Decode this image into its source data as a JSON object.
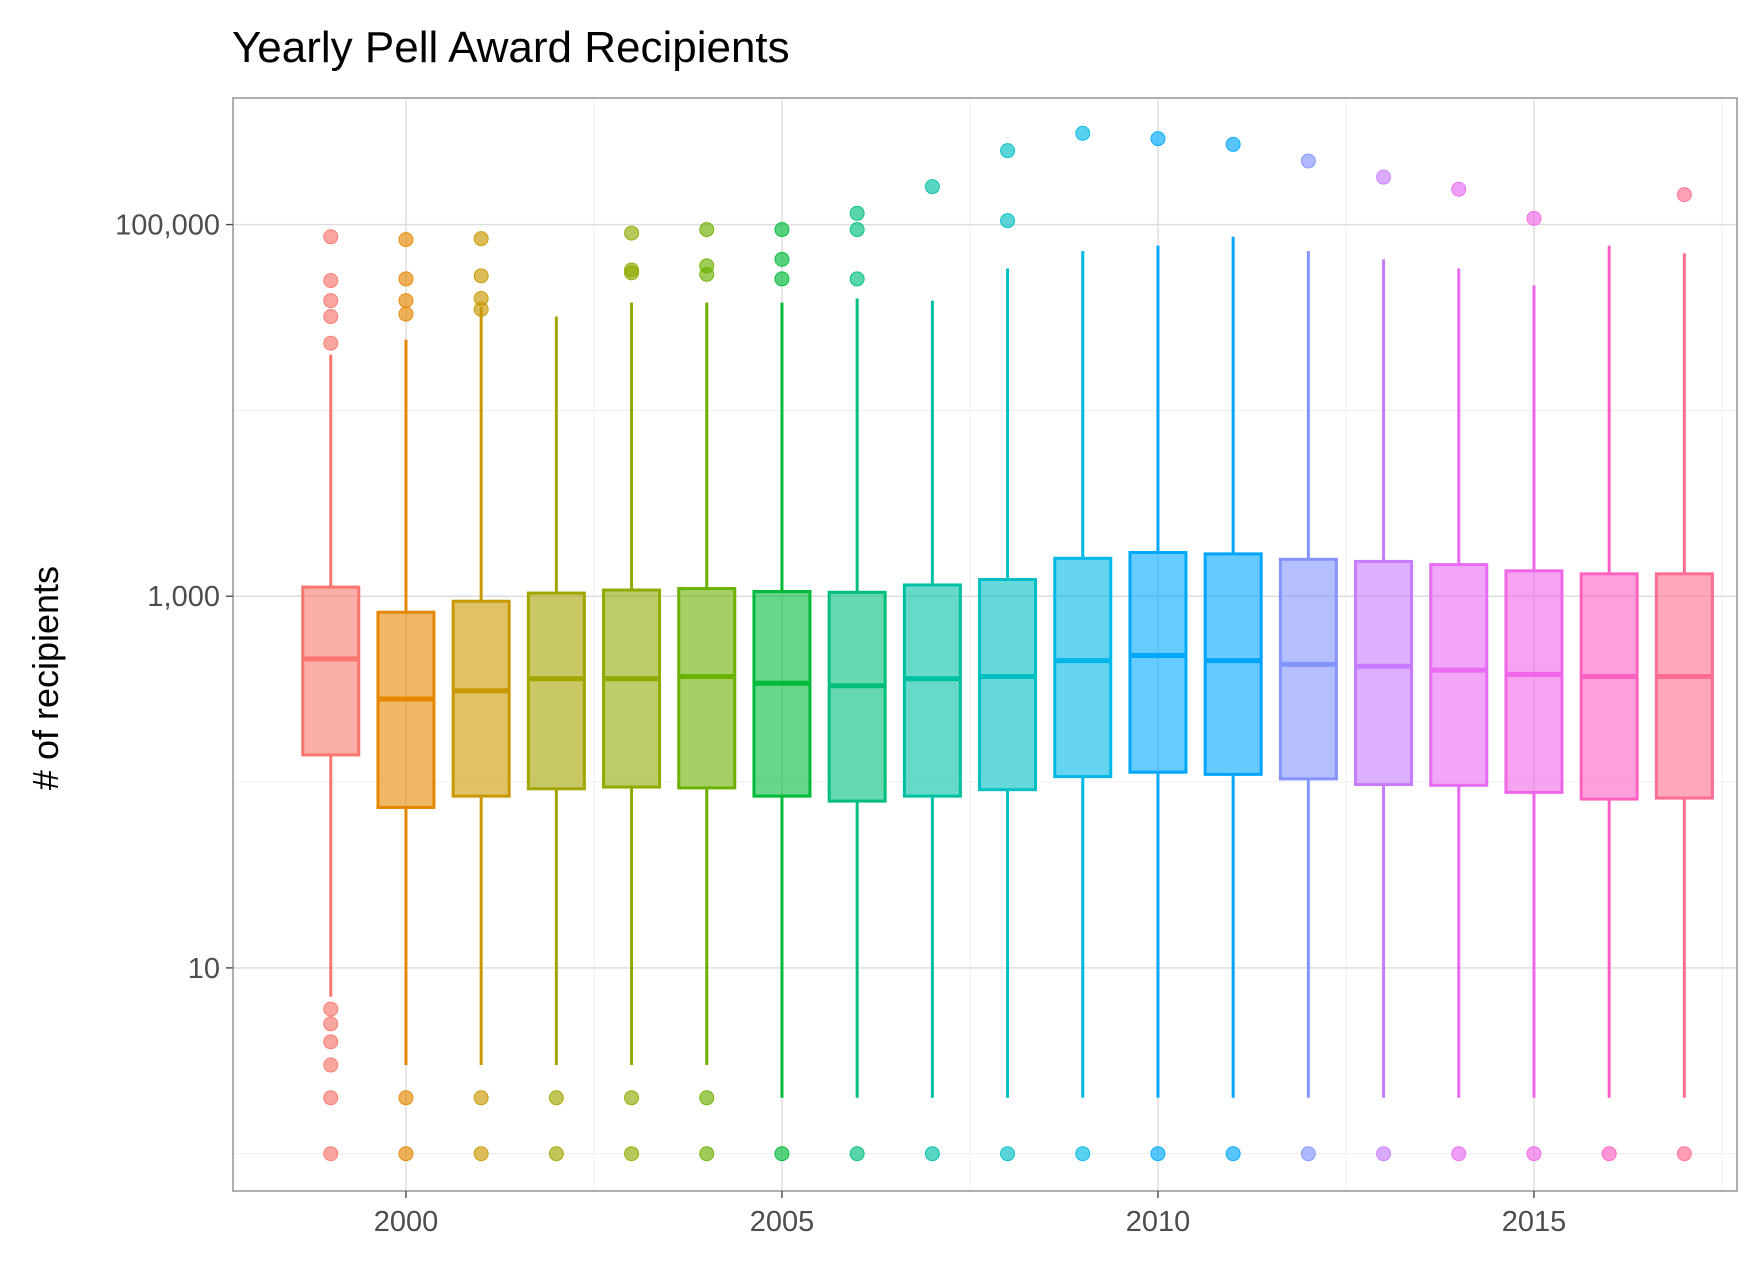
{
  "chart_data": {
    "type": "box",
    "title": "Yearly Pell Award Recipients",
    "xlabel": "",
    "ylabel": "# of recipients",
    "y_scale": "log10",
    "ylim": [
      0.63,
      480000
    ],
    "xlim": [
      1997.7,
      2017.7
    ],
    "x_ticks": [
      2000,
      2005,
      2010,
      2015
    ],
    "x_tick_labels": [
      "2000",
      "2005",
      "2010",
      "2015"
    ],
    "y_ticks": [
      10,
      1000,
      100000
    ],
    "y_tick_labels": [
      "10",
      "1,000",
      "100,000"
    ],
    "grid": true,
    "legend": "none",
    "series": [
      {
        "year": 1999,
        "color": "#F8766D",
        "q1": 140,
        "median": 460,
        "q3": 1120,
        "whisker_low": 7,
        "whisker_high": 20000,
        "outliers": [
          1,
          2,
          3,
          4,
          5,
          6,
          86000,
          50000,
          39000,
          32000,
          23000
        ]
      },
      {
        "year": 2000,
        "color": "#E58700",
        "q1": 73,
        "median": 280,
        "q3": 820,
        "whisker_low": 3,
        "whisker_high": 24000,
        "outliers": [
          1,
          2,
          83000,
          51000,
          39000,
          33000
        ]
      },
      {
        "year": 2001,
        "color": "#C99800",
        "q1": 84,
        "median": 310,
        "q3": 940,
        "whisker_low": 3,
        "whisker_high": 36000,
        "outliers": [
          1,
          2,
          84000,
          53000,
          40000,
          35000
        ]
      },
      {
        "year": 2002,
        "color": "#A3A500",
        "q1": 92,
        "median": 360,
        "q3": 1040,
        "whisker_low": 3,
        "whisker_high": 32000,
        "outliers": [
          1,
          2
        ]
      },
      {
        "year": 2003,
        "color": "#8FAA00",
        "q1": 94,
        "median": 360,
        "q3": 1080,
        "whisker_low": 3,
        "whisker_high": 38000,
        "outliers": [
          1,
          2,
          90000,
          57000,
          55000
        ]
      },
      {
        "year": 2004,
        "color": "#6BB100",
        "q1": 93,
        "median": 370,
        "q3": 1100,
        "whisker_low": 3,
        "whisker_high": 38000,
        "outliers": [
          1,
          2,
          94000,
          60000,
          54000
        ]
      },
      {
        "year": 2005,
        "color": "#00BA38",
        "q1": 84,
        "median": 340,
        "q3": 1060,
        "whisker_low": 2,
        "whisker_high": 38000,
        "outliers": [
          1,
          94000,
          65000,
          51000
        ]
      },
      {
        "year": 2006,
        "color": "#00BF7D",
        "q1": 79,
        "median": 330,
        "q3": 1050,
        "whisker_low": 2,
        "whisker_high": 40000,
        "outliers": [
          1,
          115000,
          94000,
          51000
        ]
      },
      {
        "year": 2007,
        "color": "#00C0A3",
        "q1": 84,
        "median": 360,
        "q3": 1150,
        "whisker_low": 2,
        "whisker_high": 39000,
        "outliers": [
          1,
          160000
        ]
      },
      {
        "year": 2008,
        "color": "#00BFC4",
        "q1": 91,
        "median": 370,
        "q3": 1230,
        "whisker_low": 2,
        "whisker_high": 58000,
        "outliers": [
          1,
          250000,
          105000
        ]
      },
      {
        "year": 2009,
        "color": "#00B8E7",
        "q1": 107,
        "median": 450,
        "q3": 1600,
        "whisker_low": 2,
        "whisker_high": 72000,
        "outliers": [
          1,
          310000
        ]
      },
      {
        "year": 2010,
        "color": "#00A9FF",
        "q1": 113,
        "median": 480,
        "q3": 1720,
        "whisker_low": 2,
        "whisker_high": 77000,
        "outliers": [
          1,
          290000
        ]
      },
      {
        "year": 2011,
        "color": "#00A5FF",
        "q1": 110,
        "median": 450,
        "q3": 1690,
        "whisker_low": 2,
        "whisker_high": 86000,
        "outliers": [
          1,
          270000
        ]
      },
      {
        "year": 2012,
        "color": "#8494FF",
        "q1": 104,
        "median": 430,
        "q3": 1580,
        "whisker_low": 2,
        "whisker_high": 72000,
        "outliers": [
          1,
          220000
        ]
      },
      {
        "year": 2013,
        "color": "#C77CFF",
        "q1": 97,
        "median": 420,
        "q3": 1540,
        "whisker_low": 2,
        "whisker_high": 65000,
        "outliers": [
          1,
          180000
        ]
      },
      {
        "year": 2014,
        "color": "#E76BF3",
        "q1": 96,
        "median": 400,
        "q3": 1480,
        "whisker_low": 2,
        "whisker_high": 58000,
        "outliers": [
          1,
          155000
        ]
      },
      {
        "year": 2015,
        "color": "#F066E8",
        "q1": 88,
        "median": 380,
        "q3": 1370,
        "whisker_low": 2,
        "whisker_high": 47000,
        "outliers": [
          1,
          108000
        ]
      },
      {
        "year": 2016,
        "color": "#FF61C3",
        "q1": 81,
        "median": 370,
        "q3": 1320,
        "whisker_low": 2,
        "whisker_high": 77000,
        "outliers": [
          1
        ]
      },
      {
        "year": 2017,
        "color": "#FF6C91",
        "q1": 82,
        "median": 370,
        "q3": 1320,
        "whisker_low": 2,
        "whisker_high": 70000,
        "outliers": [
          1,
          145000
        ]
      }
    ]
  }
}
